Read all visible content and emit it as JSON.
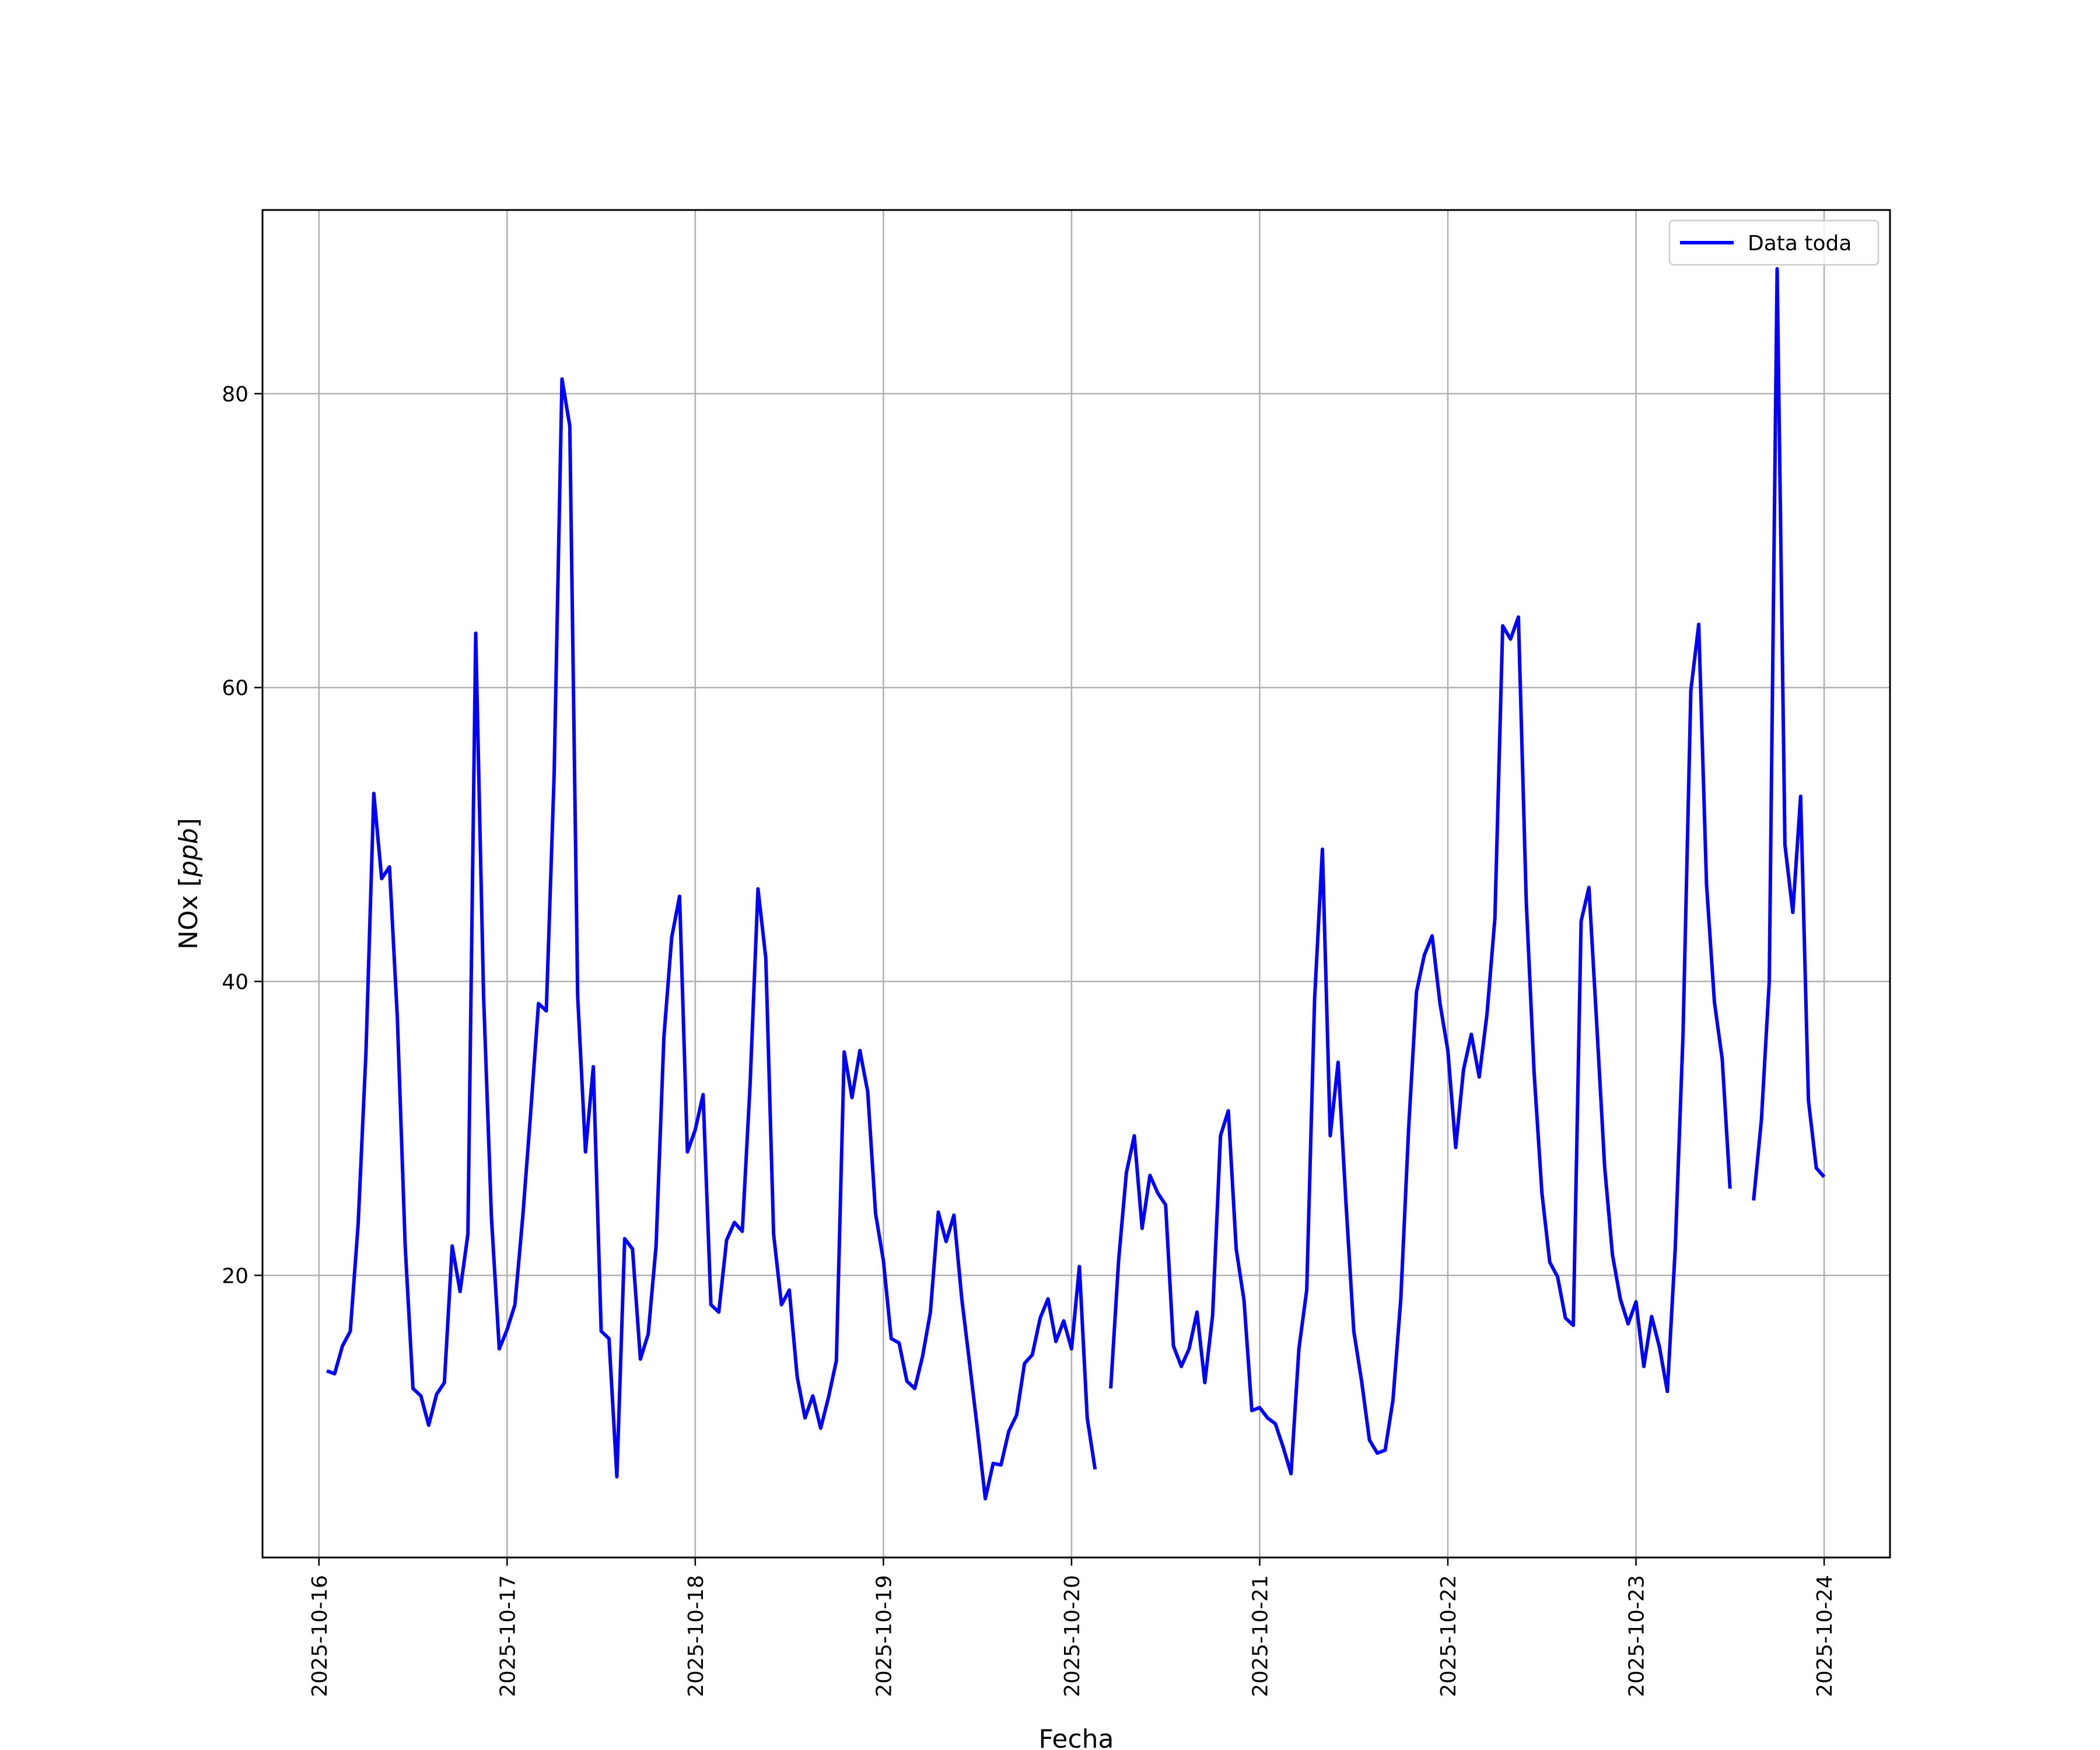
{
  "chart_data": {
    "type": "line",
    "title": "",
    "xlabel": "Fecha",
    "ylabel_main": "NOx [",
    "ylabel_unit": "ppb",
    "ylabel_close": "]",
    "xlim": [
      "2025-10-15T16:48:00",
      "2025-10-24T08:24:00"
    ],
    "ylim": [
      0.8,
      92.5
    ],
    "x_ticks": [
      "2025-10-16",
      "2025-10-17",
      "2025-10-18",
      "2025-10-19",
      "2025-10-20",
      "2025-10-21",
      "2025-10-22",
      "2025-10-23",
      "2025-10-24"
    ],
    "y_ticks": [
      20,
      40,
      60,
      80
    ],
    "grid": true,
    "legend_position": "top-right",
    "series": [
      {
        "name": "Data toda",
        "color": "#0000ff",
        "points": [
          [
            "2025-10-16T01:00:00",
            13.5
          ],
          [
            "2025-10-16T02:00:00",
            13.3
          ],
          [
            "2025-10-16T03:00:00",
            15.2
          ],
          [
            "2025-10-16T04:00:00",
            16.2
          ],
          [
            "2025-10-16T05:00:00",
            23.5
          ],
          [
            "2025-10-16T06:00:00",
            35.2
          ],
          [
            "2025-10-16T07:00:00",
            52.8
          ],
          [
            "2025-10-16T08:00:00",
            47.0
          ],
          [
            "2025-10-16T09:00:00",
            47.8
          ],
          [
            "2025-10-16T10:00:00",
            37.5
          ],
          [
            "2025-10-16T11:00:00",
            22.0
          ],
          [
            "2025-10-16T12:00:00",
            12.3
          ],
          [
            "2025-10-16T13:00:00",
            11.8
          ],
          [
            "2025-10-16T14:00:00",
            9.8
          ],
          [
            "2025-10-16T15:00:00",
            11.9
          ],
          [
            "2025-10-16T16:00:00",
            12.7
          ],
          [
            "2025-10-16T17:00:00",
            22.0
          ],
          [
            "2025-10-16T18:00:00",
            18.9
          ],
          [
            "2025-10-16T19:00:00",
            22.8
          ],
          [
            "2025-10-16T20:00:00",
            63.7
          ],
          [
            "2025-10-16T21:00:00",
            39.0
          ],
          [
            "2025-10-16T22:00:00",
            24.0
          ],
          [
            "2025-10-16T23:00:00",
            15.0
          ],
          [
            "2025-10-17T00:00:00",
            16.3
          ],
          [
            "2025-10-17T01:00:00",
            18.0
          ],
          [
            "2025-10-17T02:00:00",
            24.0
          ],
          [
            "2025-10-17T03:00:00",
            31.0
          ],
          [
            "2025-10-17T04:00:00",
            38.5
          ],
          [
            "2025-10-17T05:00:00",
            38.0
          ],
          [
            "2025-10-17T06:00:00",
            54.0
          ],
          [
            "2025-10-17T07:00:00",
            81.0
          ],
          [
            "2025-10-17T08:00:00",
            77.8
          ],
          [
            "2025-10-17T09:00:00",
            39.0
          ],
          [
            "2025-10-17T10:00:00",
            28.4
          ],
          [
            "2025-10-17T11:00:00",
            34.2
          ],
          [
            "2025-10-17T12:00:00",
            16.2
          ],
          [
            "2025-10-17T13:00:00",
            15.7
          ],
          [
            "2025-10-17T14:00:00",
            6.3
          ],
          [
            "2025-10-17T15:00:00",
            22.5
          ],
          [
            "2025-10-17T16:00:00",
            21.8
          ],
          [
            "2025-10-17T17:00:00",
            14.3
          ],
          [
            "2025-10-17T18:00:00",
            16.0
          ],
          [
            "2025-10-17T19:00:00",
            22.0
          ],
          [
            "2025-10-17T20:00:00",
            36.2
          ],
          [
            "2025-10-17T21:00:00",
            43.0
          ],
          [
            "2025-10-17T22:00:00",
            45.8
          ],
          [
            "2025-10-17T23:00:00",
            28.4
          ],
          [
            "2025-10-18T00:00:00",
            29.9
          ],
          [
            "2025-10-18T01:00:00",
            32.3
          ],
          [
            "2025-10-18T02:00:00",
            18.0
          ],
          [
            "2025-10-18T03:00:00",
            17.5
          ],
          [
            "2025-10-18T04:00:00",
            22.4
          ],
          [
            "2025-10-18T05:00:00",
            23.6
          ],
          [
            "2025-10-18T06:00:00",
            23.0
          ],
          [
            "2025-10-18T07:00:00",
            33.0
          ],
          [
            "2025-10-18T08:00:00",
            46.3
          ],
          [
            "2025-10-18T09:00:00",
            41.6
          ],
          [
            "2025-10-18T10:00:00",
            22.8
          ],
          [
            "2025-10-18T11:00:00",
            18.0
          ],
          [
            "2025-10-18T12:00:00",
            19.0
          ],
          [
            "2025-10-18T13:00:00",
            13.1
          ],
          [
            "2025-10-18T14:00:00",
            10.3
          ],
          [
            "2025-10-18T15:00:00",
            11.8
          ],
          [
            "2025-10-18T16:00:00",
            9.6
          ],
          [
            "2025-10-18T17:00:00",
            11.7
          ],
          [
            "2025-10-18T18:00:00",
            14.2
          ],
          [
            "2025-10-18T19:00:00",
            35.2
          ],
          [
            "2025-10-18T20:00:00",
            32.1
          ],
          [
            "2025-10-18T21:00:00",
            35.3
          ],
          [
            "2025-10-18T22:00:00",
            32.5
          ],
          [
            "2025-10-18T23:00:00",
            24.2
          ],
          [
            "2025-10-19T00:00:00",
            21.0
          ],
          [
            "2025-10-19T01:00:00",
            15.7
          ],
          [
            "2025-10-19T02:00:00",
            15.4
          ],
          [
            "2025-10-19T03:00:00",
            12.8
          ],
          [
            "2025-10-19T04:00:00",
            12.3
          ],
          [
            "2025-10-19T05:00:00",
            14.5
          ],
          [
            "2025-10-19T06:00:00",
            17.5
          ],
          [
            "2025-10-19T07:00:00",
            24.3
          ],
          [
            "2025-10-19T08:00:00",
            22.3
          ],
          [
            "2025-10-19T09:00:00",
            24.1
          ],
          [
            "2025-10-19T10:00:00",
            18.4
          ],
          [
            "2025-10-19T11:00:00",
            14.0
          ],
          [
            "2025-10-19T12:00:00",
            9.5
          ],
          [
            "2025-10-19T13:00:00",
            4.8
          ],
          [
            "2025-10-19T14:00:00",
            7.2
          ],
          [
            "2025-10-19T15:00:00",
            7.1
          ],
          [
            "2025-10-19T16:00:00",
            9.4
          ],
          [
            "2025-10-19T17:00:00",
            10.5
          ],
          [
            "2025-10-19T18:00:00",
            14.0
          ],
          [
            "2025-10-19T19:00:00",
            14.6
          ],
          [
            "2025-10-19T20:00:00",
            17.1
          ],
          [
            "2025-10-19T21:00:00",
            18.4
          ],
          [
            "2025-10-19T22:00:00",
            15.5
          ],
          [
            "2025-10-19T23:00:00",
            16.9
          ],
          [
            "2025-10-20T00:00:00",
            15.0
          ],
          [
            "2025-10-20T01:00:00",
            20.6
          ],
          [
            "2025-10-20T02:00:00",
            10.3
          ],
          [
            "2025-10-20T03:00:00",
            6.8
          ],
          null,
          [
            "2025-10-20T05:00:00",
            12.3
          ],
          [
            "2025-10-20T06:00:00",
            21.0
          ],
          [
            "2025-10-20T07:00:00",
            27.0
          ],
          [
            "2025-10-20T08:00:00",
            29.5
          ],
          [
            "2025-10-20T09:00:00",
            23.2
          ],
          [
            "2025-10-20T10:00:00",
            26.8
          ],
          [
            "2025-10-20T11:00:00",
            25.6
          ],
          [
            "2025-10-20T12:00:00",
            24.8
          ],
          [
            "2025-10-20T13:00:00",
            15.2
          ],
          [
            "2025-10-20T14:00:00",
            13.8
          ],
          [
            "2025-10-20T15:00:00",
            15.0
          ],
          [
            "2025-10-20T16:00:00",
            17.5
          ],
          [
            "2025-10-20T17:00:00",
            12.7
          ],
          [
            "2025-10-20T18:00:00",
            17.3
          ],
          [
            "2025-10-20T19:00:00",
            29.5
          ],
          [
            "2025-10-20T20:00:00",
            31.2
          ],
          [
            "2025-10-20T21:00:00",
            21.8
          ],
          [
            "2025-10-20T22:00:00",
            18.3
          ],
          [
            "2025-10-20T23:00:00",
            10.8
          ],
          [
            "2025-10-21T00:00:00",
            11.0
          ],
          [
            "2025-10-21T01:00:00",
            10.3
          ],
          [
            "2025-10-21T02:00:00",
            9.9
          ],
          [
            "2025-10-21T03:00:00",
            8.3
          ],
          [
            "2025-10-21T04:00:00",
            6.5
          ],
          [
            "2025-10-21T05:00:00",
            15.0
          ],
          [
            "2025-10-21T06:00:00",
            19.0
          ],
          [
            "2025-10-21T07:00:00",
            38.8
          ],
          [
            "2025-10-21T08:00:00",
            49.0
          ],
          [
            "2025-10-21T09:00:00",
            29.5
          ],
          [
            "2025-10-21T10:00:00",
            34.5
          ],
          [
            "2025-10-21T11:00:00",
            25.0
          ],
          [
            "2025-10-21T12:00:00",
            16.2
          ],
          [
            "2025-10-21T13:00:00",
            12.8
          ],
          [
            "2025-10-21T14:00:00",
            8.8
          ],
          [
            "2025-10-21T15:00:00",
            7.9
          ],
          [
            "2025-10-21T16:00:00",
            8.1
          ],
          [
            "2025-10-21T17:00:00",
            11.5
          ],
          [
            "2025-10-21T18:00:00",
            18.4
          ],
          [
            "2025-10-21T19:00:00",
            30.0
          ],
          [
            "2025-10-21T20:00:00",
            39.3
          ],
          [
            "2025-10-21T21:00:00",
            41.8
          ],
          [
            "2025-10-21T22:00:00",
            43.1
          ],
          [
            "2025-10-21T23:00:00",
            38.5
          ],
          [
            "2025-10-22T00:00:00",
            35.3
          ],
          [
            "2025-10-22T01:00:00",
            28.7
          ],
          [
            "2025-10-22T02:00:00",
            34.0
          ],
          [
            "2025-10-22T03:00:00",
            36.4
          ],
          [
            "2025-10-22T04:00:00",
            33.5
          ],
          [
            "2025-10-22T05:00:00",
            37.8
          ],
          [
            "2025-10-22T06:00:00",
            44.3
          ],
          [
            "2025-10-22T07:00:00",
            64.2
          ],
          [
            "2025-10-22T08:00:00",
            63.3
          ],
          [
            "2025-10-22T09:00:00",
            64.8
          ],
          [
            "2025-10-22T10:00:00",
            45.5
          ],
          [
            "2025-10-22T11:00:00",
            33.8
          ],
          [
            "2025-10-22T12:00:00",
            25.6
          ],
          [
            "2025-10-22T13:00:00",
            20.9
          ],
          [
            "2025-10-22T14:00:00",
            19.9
          ],
          [
            "2025-10-22T15:00:00",
            17.1
          ],
          [
            "2025-10-22T16:00:00",
            16.6
          ],
          [
            "2025-10-22T17:00:00",
            44.1
          ],
          [
            "2025-10-22T18:00:00",
            46.4
          ],
          [
            "2025-10-22T19:00:00",
            37.0
          ],
          [
            "2025-10-22T20:00:00",
            27.4
          ],
          [
            "2025-10-22T21:00:00",
            21.4
          ],
          [
            "2025-10-22T22:00:00",
            18.4
          ],
          [
            "2025-10-22T23:00:00",
            16.7
          ],
          [
            "2025-10-23T00:00:00",
            18.2
          ],
          [
            "2025-10-23T01:00:00",
            13.8
          ],
          [
            "2025-10-23T02:00:00",
            17.2
          ],
          [
            "2025-10-23T03:00:00",
            15.1
          ],
          [
            "2025-10-23T04:00:00",
            12.1
          ],
          [
            "2025-10-23T05:00:00",
            21.8
          ],
          [
            "2025-10-23T06:00:00",
            36.4
          ],
          [
            "2025-10-23T07:00:00",
            59.8
          ],
          [
            "2025-10-23T08:00:00",
            64.3
          ],
          [
            "2025-10-23T09:00:00",
            46.6
          ],
          [
            "2025-10-23T10:00:00",
            38.6
          ],
          [
            "2025-10-23T11:00:00",
            34.7
          ],
          [
            "2025-10-23T12:00:00",
            25.9
          ],
          null,
          [
            "2025-10-23T15:00:00",
            25.1
          ],
          [
            "2025-10-23T16:00:00",
            30.6
          ],
          [
            "2025-10-23T17:00:00",
            40.0
          ],
          [
            "2025-10-23T18:00:00",
            88.5
          ],
          [
            "2025-10-23T19:00:00",
            49.3
          ],
          [
            "2025-10-23T20:00:00",
            44.7
          ],
          [
            "2025-10-23T21:00:00",
            52.6
          ],
          [
            "2025-10-23T22:00:00",
            31.9
          ],
          [
            "2025-10-23T23:00:00",
            27.3
          ],
          [
            "2025-10-24T00:00:00",
            26.7
          ]
        ]
      }
    ]
  }
}
